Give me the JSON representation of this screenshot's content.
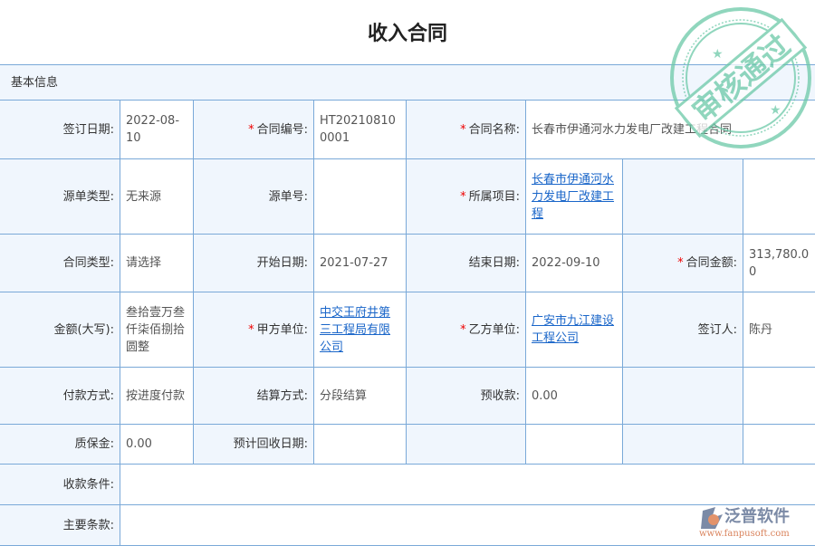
{
  "title": "收入合同",
  "section": "基本信息",
  "stamp_text": "审核通过",
  "logo": {
    "name": "泛普软件",
    "url": "www.fanpusoft.com"
  },
  "fields": {
    "sign_date": {
      "label": "签订日期:",
      "value": "2022-08-10"
    },
    "contract_no": {
      "label": "合同编号:",
      "value": "HT202108100001"
    },
    "contract_name": {
      "label": "合同名称:",
      "value": "长春市伊通河水力发电厂改建工程合同"
    },
    "source_type": {
      "label": "源单类型:",
      "value": "无来源"
    },
    "source_no": {
      "label": "源单号:",
      "value": ""
    },
    "project": {
      "label": "所属项目:",
      "value": "长春市伊通河水力发电厂改建工程"
    },
    "contract_type": {
      "label": "合同类型:",
      "value": "请选择"
    },
    "start_date": {
      "label": "开始日期:",
      "value": "2021-07-27"
    },
    "end_date": {
      "label": "结束日期:",
      "value": "2022-09-10"
    },
    "amount": {
      "label": "合同金额:",
      "value": "313,780.00"
    },
    "amount_caps": {
      "label": "金额(大写):",
      "value": "叁拾壹万叁仟柒佰捌拾圆整"
    },
    "party_a": {
      "label": "甲方单位:",
      "value": "中交王府井第三工程局有限公司"
    },
    "party_b": {
      "label": "乙方单位:",
      "value": "广安市九江建设工程公司"
    },
    "signer": {
      "label": "签订人:",
      "value": "陈丹"
    },
    "payment": {
      "label": "付款方式:",
      "value": "按进度付款"
    },
    "settlement": {
      "label": "结算方式:",
      "value": "分段结算"
    },
    "prepay": {
      "label": "预收款:",
      "value": "0.00"
    },
    "deposit": {
      "label": "质保金:",
      "value": "0.00"
    },
    "expected_date": {
      "label": "预计回收日期:",
      "value": ""
    },
    "terms_collect": {
      "label": "收款条件:",
      "value": ""
    },
    "terms_main": {
      "label": "主要条款:",
      "value": ""
    }
  }
}
